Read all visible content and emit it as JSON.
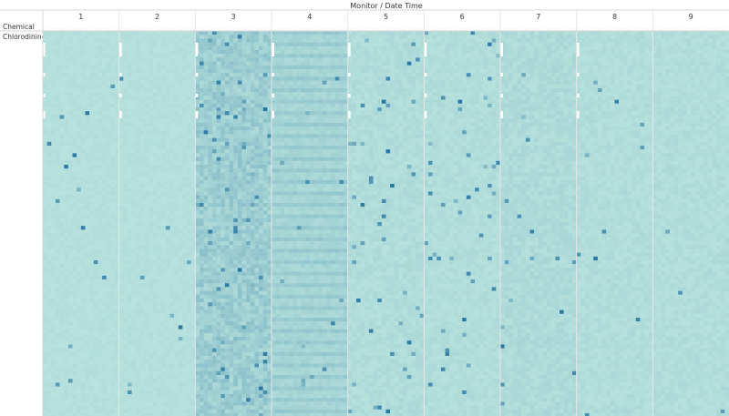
{
  "chart_data": {
    "type": "heatmap",
    "column_header_title": "Monitor  /  Date Time",
    "row_header_title": "Chemical",
    "rows": [
      "Chlorodinine"
    ],
    "monitors": [
      "1",
      "2",
      "3",
      "4",
      "5",
      "6",
      "7",
      "8",
      "9"
    ],
    "color_range": {
      "low": "#bde6df",
      "high": "#1f6f9e"
    },
    "grid": false,
    "legend": "none"
  }
}
